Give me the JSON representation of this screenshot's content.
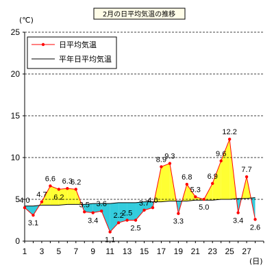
{
  "chart_data": {
    "type": "line",
    "title": "2月の日平均気温の推移",
    "y_unit": "(℃)",
    "x_unit": "(日)",
    "ylim": [
      0,
      25
    ],
    "yticks": [
      0,
      5,
      10,
      15,
      20,
      25
    ],
    "xlim": [
      1,
      29
    ],
    "xticks": [
      1,
      3,
      5,
      7,
      9,
      11,
      13,
      15,
      17,
      19,
      21,
      23,
      25,
      27
    ],
    "grid": "horizontal dashed",
    "legend_position": "top-left",
    "x": [
      1,
      2,
      3,
      4,
      5,
      6,
      7,
      8,
      9,
      10,
      11,
      12,
      13,
      14,
      15,
      16,
      17,
      18,
      19,
      20,
      21,
      22,
      23,
      24,
      25,
      26,
      27,
      28
    ],
    "series": [
      {
        "name": "日平均気温",
        "color": "#ff0000",
        "values": [
          4.0,
          3.1,
          4.7,
          6.6,
          6.2,
          6.3,
          6.2,
          3.5,
          3.4,
          3.6,
          1.1,
          2.2,
          2.5,
          2.5,
          3.7,
          4.0,
          8.9,
          9.3,
          3.3,
          6.8,
          5.3,
          5.0,
          6.9,
          9.6,
          12.2,
          3.4,
          7.7,
          2.6
        ],
        "labels": [
          "4.0",
          "3.1",
          "4.7",
          "6.6",
          "6.2",
          "6.3",
          "6.2",
          "3.5",
          "3.4",
          "3.6",
          "1.1",
          "2.2",
          "2.5",
          "2.5",
          "3.7",
          "4.0",
          "8.9",
          "9.3",
          "3.3",
          "6.8",
          "5.3",
          "5.0",
          "6.9",
          "9.6",
          "12.2",
          "3.4",
          "7.7",
          "2.6"
        ]
      },
      {
        "name": "平年日平均気温",
        "color": "#000000",
        "values": [
          4.2,
          4.2,
          4.3,
          4.3,
          4.3,
          4.4,
          4.4,
          4.4,
          4.5,
          4.5,
          4.5,
          4.6,
          4.6,
          4.6,
          4.7,
          4.7,
          4.7,
          4.8,
          4.8,
          4.8,
          4.9,
          4.9,
          4.9,
          5.0,
          5.0,
          5.1,
          5.1,
          5.2
        ]
      }
    ],
    "fill_above_color": "#ffff33",
    "fill_below_color": "#33ccdd"
  }
}
